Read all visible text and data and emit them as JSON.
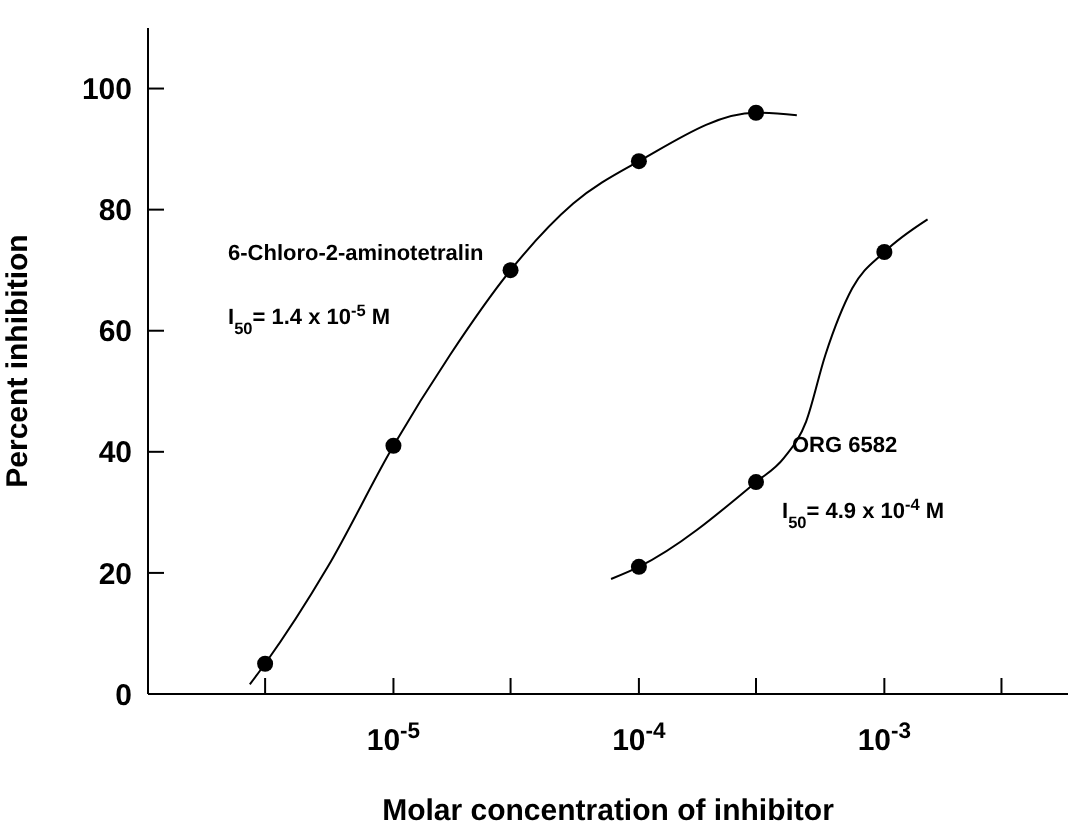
{
  "chart_data": {
    "type": "scatter",
    "xlabel": "Molar concentration of inhibitor",
    "ylabel": "Percent inhibition",
    "log": "x",
    "marker": "circle",
    "xlim": [
      1e-06,
      0.0056
    ],
    "xticks": [
      {
        "value": 3e-06,
        "label": null
      },
      {
        "value": 1e-05,
        "label": "10$^{-5}$"
      },
      {
        "value": 3e-05,
        "label": null
      },
      {
        "value": 0.0001,
        "label": "10$^{-4}$"
      },
      {
        "value": 0.0003,
        "label": null
      },
      {
        "value": 0.001,
        "label": "10$^{-3}$"
      },
      {
        "value": 0.003,
        "label": null
      }
    ],
    "ylim": [
      0,
      110
    ],
    "yticks": [
      0,
      20,
      40,
      60,
      80,
      100
    ],
    "series": [
      {
        "name": "6-Chloro-2-aminotetralin",
        "type": "scatter",
        "color": "#000000",
        "x": [
          3e-06,
          1e-05,
          3e-05,
          0.0001,
          0.0003
        ],
        "values": [
          5,
          41,
          70,
          88,
          96
        ]
      },
      {
        "name": "ORG 6582",
        "type": "scatter",
        "color": "#000000",
        "x": [
          0.0001,
          0.0003,
          0.001
        ],
        "values": [
          21,
          35,
          73
        ]
      },
      {
        "type": "line",
        "marker": "none",
        "color": "#000000",
        "x": [
          2.6e-06,
          3e-06,
          5.4e-06,
          1e-05,
          1.7e-05,
          3e-05,
          5.4e-05,
          0.0001,
          0.0003,
          0.00044
        ],
        "values": [
          1.6,
          5,
          21,
          41,
          56,
          70,
          81,
          88,
          96,
          95.6
        ]
      },
      {
        "type": "line",
        "marker": "none",
        "color": "#000000",
        "x": [
          7.7e-05,
          0.0001,
          0.0003,
          0.00039,
          0.00048,
          0.000575,
          0.00074,
          0.001,
          0.0015
        ],
        "values": [
          19,
          21,
          35,
          39,
          45,
          56,
          67,
          73,
          78.4
        ]
      }
    ],
    "annotations": [
      "I$_{50}$= 1.4 x 10$^{-5}$ M",
      "I$_{50}$= 4.9 x 10$^{-4}$ M"
    ]
  }
}
